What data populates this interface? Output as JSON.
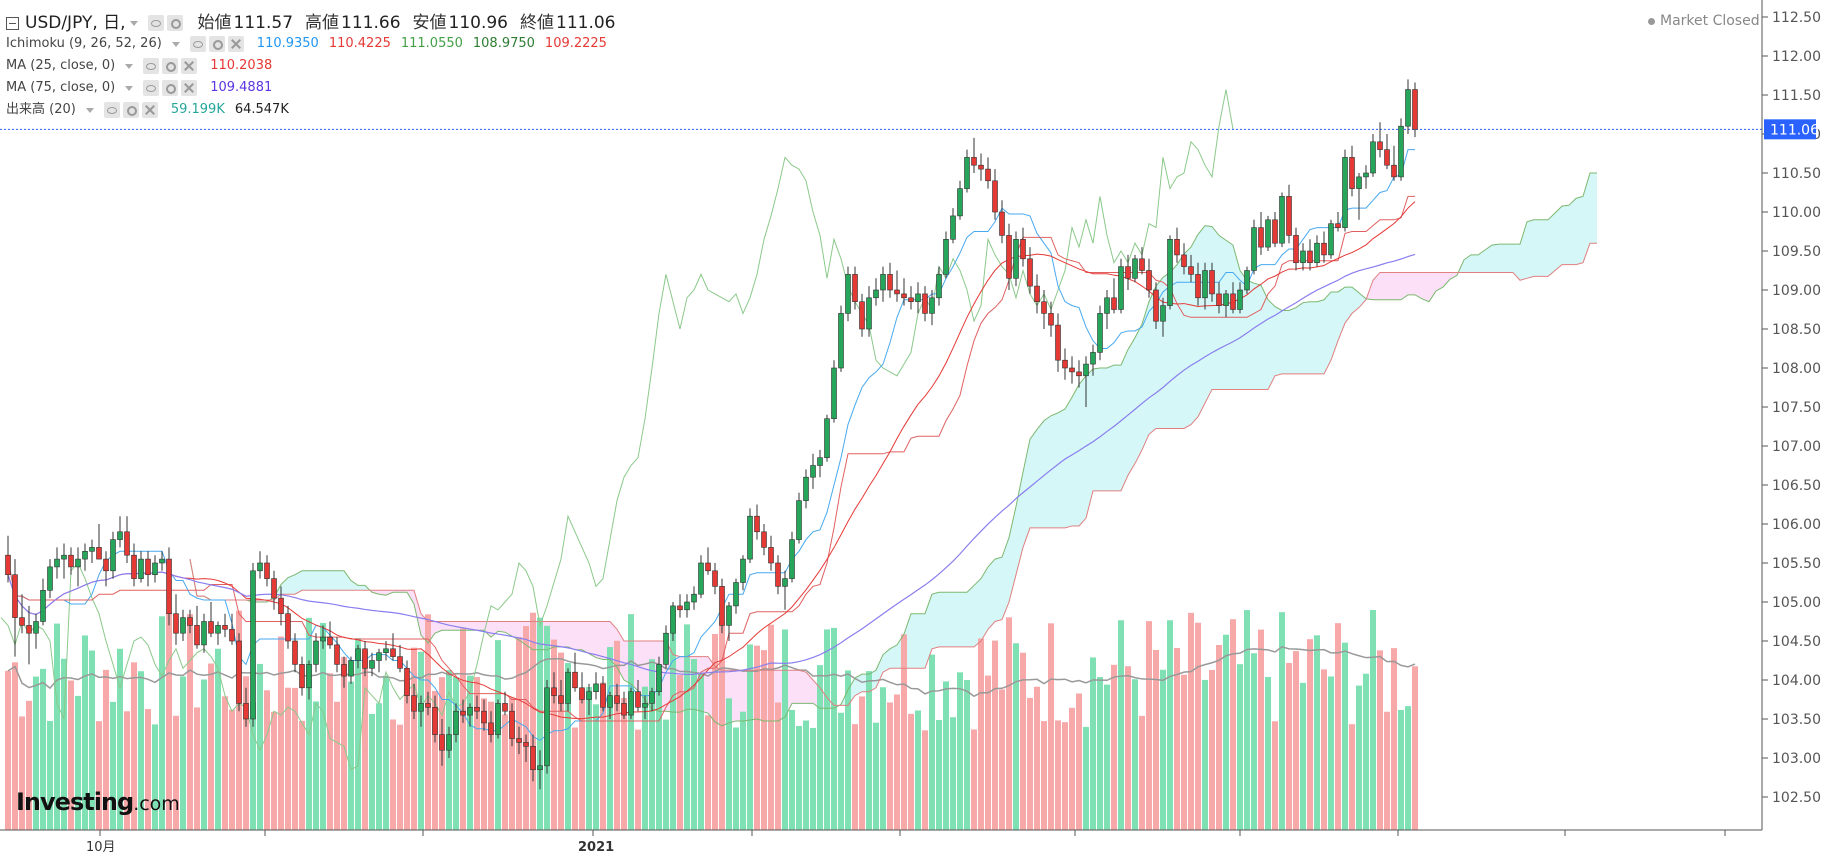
{
  "header": {
    "symbol": "USD/JPY, 日,",
    "open_label": "始値",
    "open": "111.57",
    "high_label": "高値",
    "high": "111.66",
    "low_label": "安値",
    "low": "110.96",
    "close_label": "終値",
    "close": "111.06",
    "market_status": "Market Closed"
  },
  "indicators": [
    {
      "name": "Ichimoku (9, 26, 52, 26)",
      "values": [
        "110.9350",
        "110.4225",
        "111.0550",
        "108.9750",
        "109.2225"
      ],
      "colors": [
        "#2196f3",
        "#e53935",
        "#43a047",
        "#2e7d32",
        "#e53935"
      ]
    },
    {
      "name": "MA (25, close, 0)",
      "values": [
        "110.2038"
      ],
      "colors": [
        "#e53935"
      ]
    },
    {
      "name": "MA (75, close, 0)",
      "values": [
        "109.4881"
      ],
      "colors": [
        "#5c35e0"
      ]
    },
    {
      "name": "出来高 (20)",
      "values": [
        "59.199K",
        "64.547K"
      ],
      "colors": [
        "#26a69a",
        "#222222"
      ]
    }
  ],
  "price_tag": "111.06",
  "logo": {
    "main": "Investing",
    "suffix": ".com"
  },
  "colors": {
    "up": "#26a65b",
    "down": "#e53935",
    "cloud_up": "#b2f0f0",
    "cloud_down": "#f7c6f0",
    "vol_up": "#7fe0b4",
    "vol_down": "#f7a8a8"
  },
  "chart_data": {
    "type": "candlestick",
    "y_ticks": [
      "112.50",
      "112.00",
      "111.50",
      "111.00",
      "110.50",
      "110.00",
      "109.50",
      "109.00",
      "108.50",
      "108.00",
      "107.50",
      "107.00",
      "106.50",
      "106.00",
      "105.50",
      "105.00",
      "104.50",
      "104.00",
      "103.50",
      "103.00",
      "102.50"
    ],
    "ylim": [
      102.25,
      112.75
    ],
    "x_labels": [
      "10月",
      "2021"
    ],
    "ohlc": [
      [
        105.6,
        105.85,
        105.25,
        105.35
      ],
      [
        105.35,
        105.55,
        104.3,
        104.8
      ],
      [
        104.8,
        105.1,
        104.6,
        104.7
      ],
      [
        104.7,
        104.95,
        104.2,
        104.6
      ],
      [
        104.6,
        104.85,
        104.4,
        104.75
      ],
      [
        104.75,
        105.3,
        104.7,
        105.15
      ],
      [
        105.15,
        105.55,
        105.05,
        105.45
      ],
      [
        105.45,
        105.7,
        105.3,
        105.55
      ],
      [
        105.55,
        105.75,
        105.3,
        105.6
      ],
      [
        105.6,
        105.7,
        105.35,
        105.45
      ],
      [
        105.45,
        105.7,
        105.2,
        105.55
      ],
      [
        105.55,
        105.75,
        105.4,
        105.65
      ],
      [
        105.65,
        105.8,
        105.5,
        105.7
      ],
      [
        105.7,
        106.0,
        105.6,
        105.55
      ],
      [
        105.55,
        105.65,
        105.2,
        105.4
      ],
      [
        105.4,
        105.9,
        105.3,
        105.8
      ],
      [
        105.8,
        106.1,
        105.7,
        105.9
      ],
      [
        105.9,
        106.1,
        105.5,
        105.6
      ],
      [
        105.6,
        105.75,
        105.2,
        105.3
      ],
      [
        105.3,
        105.65,
        105.25,
        105.55
      ],
      [
        105.55,
        105.65,
        105.2,
        105.35
      ],
      [
        105.35,
        105.6,
        105.25,
        105.5
      ],
      [
        105.5,
        105.65,
        105.4,
        105.55
      ],
      [
        105.55,
        105.7,
        104.7,
        104.85
      ],
      [
        104.85,
        105.1,
        104.45,
        104.6
      ],
      [
        104.6,
        104.9,
        104.5,
        104.8
      ],
      [
        104.8,
        104.9,
        104.6,
        104.7
      ],
      [
        104.7,
        104.95,
        104.4,
        104.45
      ],
      [
        104.45,
        104.85,
        104.35,
        104.75
      ],
      [
        104.75,
        105.0,
        104.55,
        104.6
      ],
      [
        104.6,
        104.75,
        104.45,
        104.7
      ],
      [
        104.7,
        104.85,
        104.55,
        104.65
      ],
      [
        104.65,
        104.85,
        104.45,
        104.5
      ],
      [
        104.5,
        104.6,
        103.6,
        103.7
      ],
      [
        103.7,
        103.9,
        103.4,
        103.5
      ],
      [
        103.5,
        105.5,
        103.4,
        105.4
      ],
      [
        105.4,
        105.65,
        105.3,
        105.5
      ],
      [
        105.5,
        105.6,
        105.2,
        105.3
      ],
      [
        105.3,
        105.4,
        104.9,
        105.05
      ],
      [
        105.05,
        105.2,
        104.7,
        104.85
      ],
      [
        104.85,
        104.95,
        104.4,
        104.5
      ],
      [
        104.5,
        104.6,
        104.1,
        104.2
      ],
      [
        104.2,
        104.3,
        103.8,
        103.9
      ],
      [
        103.9,
        104.25,
        103.75,
        104.2
      ],
      [
        104.2,
        104.6,
        104.1,
        104.5
      ],
      [
        104.5,
        104.7,
        104.4,
        104.55
      ],
      [
        104.55,
        104.75,
        104.4,
        104.45
      ],
      [
        104.45,
        104.55,
        104.1,
        104.2
      ],
      [
        104.2,
        104.3,
        103.9,
        104.05
      ],
      [
        104.05,
        104.3,
        103.95,
        104.25
      ],
      [
        104.25,
        104.45,
        104.15,
        104.4
      ],
      [
        104.4,
        104.5,
        104.05,
        104.15
      ],
      [
        104.15,
        104.35,
        104.05,
        104.25
      ],
      [
        104.25,
        104.4,
        104.1,
        104.35
      ],
      [
        104.35,
        104.5,
        104.25,
        104.4
      ],
      [
        104.4,
        104.6,
        104.25,
        104.3
      ],
      [
        104.3,
        104.45,
        104.1,
        104.15
      ],
      [
        104.15,
        104.25,
        103.7,
        103.8
      ],
      [
        103.8,
        103.95,
        103.5,
        103.6
      ],
      [
        103.6,
        103.8,
        103.4,
        103.7
      ],
      [
        103.7,
        103.85,
        103.55,
        103.65
      ],
      [
        103.65,
        103.8,
        103.2,
        103.3
      ],
      [
        103.3,
        103.5,
        102.9,
        103.1
      ],
      [
        103.1,
        103.4,
        103.0,
        103.3
      ],
      [
        103.3,
        103.7,
        103.2,
        103.6
      ],
      [
        103.6,
        103.75,
        103.45,
        103.55
      ],
      [
        103.55,
        103.7,
        103.4,
        103.65
      ],
      [
        103.65,
        103.8,
        103.5,
        103.6
      ],
      [
        103.6,
        103.75,
        103.35,
        103.45
      ],
      [
        103.45,
        103.6,
        103.2,
        103.3
      ],
      [
        103.3,
        103.75,
        103.25,
        103.7
      ],
      [
        103.7,
        103.85,
        103.55,
        103.6
      ],
      [
        103.6,
        103.7,
        103.15,
        103.25
      ],
      [
        103.25,
        103.4,
        103.05,
        103.2
      ],
      [
        103.2,
        103.3,
        102.95,
        103.15
      ],
      [
        103.15,
        103.3,
        102.7,
        102.85
      ],
      [
        102.85,
        103.1,
        102.6,
        102.9
      ],
      [
        102.9,
        104.0,
        102.8,
        103.9
      ],
      [
        103.9,
        104.1,
        103.7,
        103.8
      ],
      [
        103.8,
        104.0,
        103.6,
        103.7
      ],
      [
        103.7,
        104.15,
        103.6,
        104.1
      ],
      [
        104.1,
        104.35,
        103.85,
        103.9
      ],
      [
        103.9,
        104.1,
        103.7,
        103.75
      ],
      [
        103.75,
        103.95,
        103.55,
        103.85
      ],
      [
        103.85,
        104.1,
        103.75,
        103.95
      ],
      [
        103.95,
        104.05,
        103.6,
        103.65
      ],
      [
        103.65,
        103.85,
        103.5,
        103.8
      ],
      [
        103.8,
        103.95,
        103.6,
        103.7
      ],
      [
        103.7,
        103.85,
        103.5,
        103.55
      ],
      [
        103.55,
        103.9,
        103.5,
        103.85
      ],
      [
        103.85,
        104.0,
        103.6,
        103.65
      ],
      [
        103.65,
        103.8,
        103.5,
        103.7
      ],
      [
        103.7,
        103.9,
        103.6,
        103.85
      ],
      [
        103.85,
        104.3,
        103.8,
        104.2
      ],
      [
        104.2,
        104.7,
        104.15,
        104.6
      ],
      [
        104.6,
        105.0,
        104.5,
        104.95
      ],
      [
        104.95,
        105.1,
        104.8,
        104.9
      ],
      [
        104.9,
        105.1,
        104.8,
        105.0
      ],
      [
        105.0,
        105.2,
        104.9,
        105.1
      ],
      [
        105.1,
        105.6,
        105.05,
        105.5
      ],
      [
        105.5,
        105.7,
        105.35,
        105.4
      ],
      [
        105.4,
        105.5,
        105.1,
        105.2
      ],
      [
        105.2,
        105.3,
        104.6,
        104.7
      ],
      [
        104.7,
        105.0,
        104.5,
        104.95
      ],
      [
        104.95,
        105.3,
        104.85,
        105.25
      ],
      [
        105.25,
        105.6,
        105.15,
        105.55
      ],
      [
        105.55,
        106.2,
        105.5,
        106.1
      ],
      [
        106.1,
        106.25,
        105.8,
        105.9
      ],
      [
        105.9,
        106.0,
        105.6,
        105.7
      ],
      [
        105.7,
        105.85,
        105.4,
        105.5
      ],
      [
        105.5,
        105.6,
        105.1,
        105.2
      ],
      [
        105.2,
        105.4,
        104.9,
        105.3
      ],
      [
        105.3,
        105.9,
        105.25,
        105.8
      ],
      [
        105.8,
        106.4,
        105.75,
        106.3
      ],
      [
        106.3,
        106.7,
        106.2,
        106.6
      ],
      [
        106.6,
        106.9,
        106.45,
        106.75
      ],
      [
        106.75,
        106.95,
        106.6,
        106.85
      ],
      [
        106.85,
        107.4,
        106.8,
        107.35
      ],
      [
        107.35,
        108.1,
        107.3,
        108.0
      ],
      [
        108.0,
        108.8,
        107.95,
        108.7
      ],
      [
        108.7,
        109.3,
        108.6,
        109.2
      ],
      [
        109.2,
        109.3,
        108.75,
        108.85
      ],
      [
        108.85,
        108.95,
        108.4,
        108.5
      ],
      [
        108.5,
        109.05,
        108.4,
        108.9
      ],
      [
        108.9,
        109.15,
        108.8,
        109.0
      ],
      [
        109.0,
        109.3,
        108.85,
        109.2
      ],
      [
        109.2,
        109.35,
        108.9,
        109.0
      ],
      [
        109.0,
        109.25,
        108.85,
        108.95
      ],
      [
        108.95,
        109.15,
        108.8,
        108.9
      ],
      [
        108.9,
        109.05,
        108.75,
        108.85
      ],
      [
        108.85,
        109.1,
        108.7,
        108.95
      ],
      [
        108.95,
        109.05,
        108.6,
        108.7
      ],
      [
        108.7,
        109.0,
        108.55,
        108.9
      ],
      [
        108.9,
        109.3,
        108.8,
        109.2
      ],
      [
        109.2,
        109.75,
        109.15,
        109.65
      ],
      [
        109.65,
        110.05,
        109.6,
        109.95
      ],
      [
        109.95,
        110.4,
        109.9,
        110.3
      ],
      [
        110.3,
        110.8,
        110.25,
        110.7
      ],
      [
        110.7,
        110.95,
        110.5,
        110.6
      ],
      [
        110.6,
        110.75,
        110.4,
        110.55
      ],
      [
        110.55,
        110.7,
        110.3,
        110.4
      ],
      [
        110.4,
        110.55,
        109.9,
        110.0
      ],
      [
        110.0,
        110.15,
        109.6,
        109.7
      ],
      [
        109.7,
        109.85,
        109.0,
        109.15
      ],
      [
        109.15,
        109.75,
        109.05,
        109.65
      ],
      [
        109.65,
        109.8,
        109.3,
        109.4
      ],
      [
        109.4,
        109.55,
        108.95,
        109.05
      ],
      [
        109.05,
        109.2,
        108.7,
        108.85
      ],
      [
        108.85,
        109.0,
        108.5,
        108.7
      ],
      [
        108.7,
        108.85,
        108.4,
        108.55
      ],
      [
        108.55,
        108.7,
        107.95,
        108.1
      ],
      [
        108.1,
        108.25,
        107.85,
        108.0
      ],
      [
        108.0,
        108.15,
        107.8,
        107.95
      ],
      [
        107.95,
        108.1,
        107.75,
        107.9
      ],
      [
        107.9,
        108.15,
        107.5,
        108.05
      ],
      [
        108.05,
        108.3,
        107.9,
        108.2
      ],
      [
        108.2,
        108.8,
        108.1,
        108.7
      ],
      [
        108.7,
        109.0,
        108.5,
        108.9
      ],
      [
        108.9,
        109.15,
        108.7,
        108.75
      ],
      [
        108.75,
        109.4,
        108.7,
        109.3
      ],
      [
        109.3,
        109.45,
        109.0,
        109.15
      ],
      [
        109.15,
        109.45,
        109.1,
        109.4
      ],
      [
        109.4,
        109.55,
        109.2,
        109.25
      ],
      [
        109.25,
        109.4,
        108.9,
        109.0
      ],
      [
        109.0,
        109.1,
        108.5,
        108.6
      ],
      [
        108.6,
        108.9,
        108.4,
        108.8
      ],
      [
        108.8,
        109.7,
        108.75,
        109.65
      ],
      [
        109.65,
        109.8,
        109.35,
        109.45
      ],
      [
        109.45,
        109.6,
        109.2,
        109.3
      ],
      [
        109.3,
        109.45,
        109.1,
        109.2
      ],
      [
        109.2,
        109.35,
        108.8,
        108.9
      ],
      [
        108.9,
        109.35,
        108.75,
        109.25
      ],
      [
        109.25,
        109.35,
        108.85,
        108.95
      ],
      [
        108.95,
        109.1,
        108.7,
        108.8
      ],
      [
        108.8,
        109.0,
        108.65,
        108.95
      ],
      [
        108.95,
        109.1,
        108.7,
        108.75
      ],
      [
        108.75,
        109.1,
        108.7,
        109.0
      ],
      [
        109.0,
        109.3,
        108.95,
        109.25
      ],
      [
        109.25,
        109.9,
        109.2,
        109.8
      ],
      [
        109.8,
        110.0,
        109.45,
        109.55
      ],
      [
        109.55,
        109.95,
        109.5,
        109.9
      ],
      [
        109.9,
        110.0,
        109.55,
        109.6
      ],
      [
        109.6,
        110.25,
        109.55,
        110.2
      ],
      [
        110.2,
        110.35,
        109.6,
        109.7
      ],
      [
        109.7,
        109.8,
        109.25,
        109.35
      ],
      [
        109.35,
        109.6,
        109.25,
        109.5
      ],
      [
        109.5,
        109.65,
        109.25,
        109.35
      ],
      [
        109.35,
        109.7,
        109.3,
        109.6
      ],
      [
        109.6,
        109.75,
        109.35,
        109.45
      ],
      [
        109.45,
        109.9,
        109.4,
        109.85
      ],
      [
        109.85,
        110.0,
        109.75,
        109.8
      ],
      [
        109.8,
        110.8,
        109.75,
        110.7
      ],
      [
        110.7,
        110.85,
        110.2,
        110.3
      ],
      [
        110.3,
        110.5,
        109.9,
        110.45
      ],
      [
        110.45,
        110.6,
        110.3,
        110.5
      ],
      [
        110.5,
        111.0,
        110.45,
        110.9
      ],
      [
        110.9,
        111.15,
        110.7,
        110.8
      ],
      [
        110.8,
        111.0,
        110.55,
        110.6
      ],
      [
        110.6,
        110.85,
        110.4,
        110.45
      ],
      [
        110.45,
        111.2,
        110.4,
        111.1
      ],
      [
        111.1,
        111.7,
        111.0,
        111.57
      ],
      [
        111.57,
        111.66,
        110.96,
        111.06
      ]
    ],
    "volume": {
      "up": "#7fe0b4",
      "down": "#f7a8a8",
      "ma_period": 20,
      "last": 59.199,
      "ma": 64.547,
      "unit": "K"
    }
  }
}
